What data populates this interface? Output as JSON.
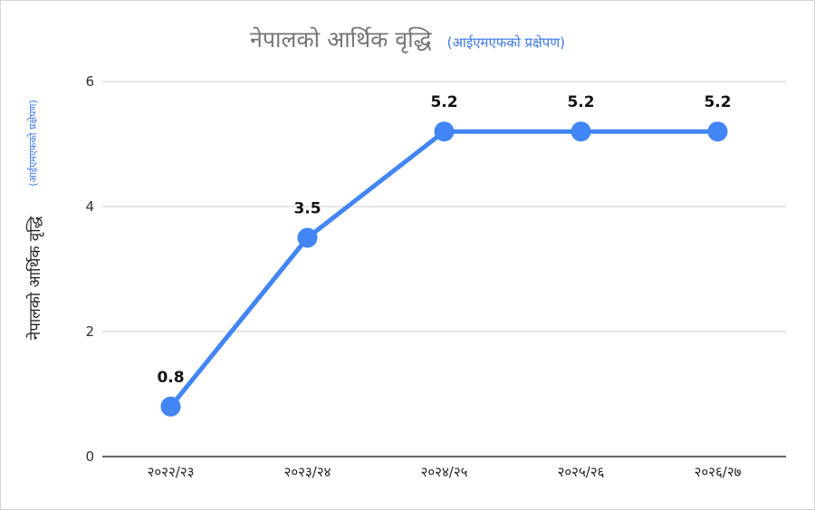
{
  "chart_data": {
    "type": "line",
    "title": "नेपालको आर्थिक वृद्धि",
    "subtitle": "(आईएमएफको प्रक्षेपण)",
    "ylabel": "नेपालको आर्थिक वृद्धि",
    "ylabel_sub": "(आईएमएफको प्रक्षेपण)",
    "categories": [
      "२०२२/२३",
      "२०२३/२४",
      "२०२४/२५",
      "२०२५/२६",
      "२०२६/२७"
    ],
    "values": [
      0.8,
      3.5,
      5.2,
      5.2,
      5.2
    ],
    "value_labels": [
      "0.8",
      "3.5",
      "5.2",
      "5.2",
      "5.2"
    ],
    "yticks": [
      "0",
      "2",
      "4",
      "6"
    ],
    "ylim": [
      0,
      6
    ],
    "grid": true,
    "legend": "none",
    "colors": {
      "line": "#4285f4",
      "title": "#757575",
      "subtitle": "#3b78e7",
      "grid": "#cccccc"
    }
  }
}
